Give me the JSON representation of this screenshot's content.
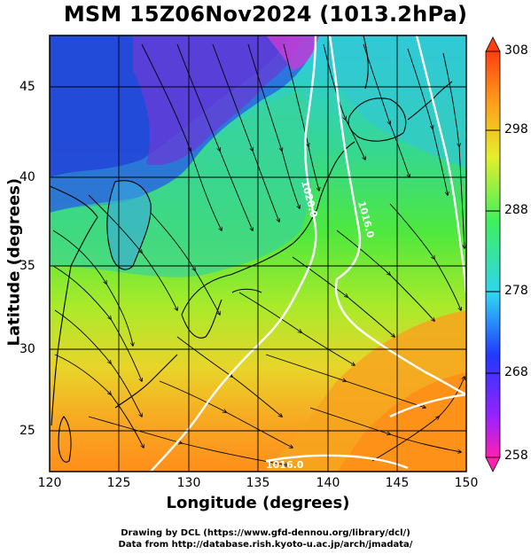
{
  "title": "MSM 15Z06Nov2024 (1013.2hPa)",
  "map": {
    "type": "temperature field with streamlines and pressure isobars",
    "region": "Japan and surrounding seas",
    "lon_range": [
      120,
      150
    ],
    "lat_range": [
      22.5,
      47.6
    ],
    "x_label": "Longitude (degrees)",
    "y_label": "Latitude  (degrees)",
    "x_ticks": [
      "120",
      "125",
      "130",
      "135",
      "140",
      "145",
      "150"
    ],
    "y_ticks": [
      "25",
      "30",
      "35",
      "40",
      "45"
    ],
    "grid": true,
    "isobars": [
      {
        "label": "1020.0",
        "color": "#ffffff"
      },
      {
        "label": "1016.0",
        "color": "#ffffff"
      },
      {
        "label": "1016.0",
        "color": "#ffffff"
      }
    ]
  },
  "colorbar": {
    "min": 258,
    "max": 308,
    "ticks": [
      "308",
      "298",
      "288",
      "278",
      "268",
      "258"
    ],
    "colors": [
      "#ff1fb0",
      "#9a22ff",
      "#2237ff",
      "#2fd4f4",
      "#3df05e",
      "#e4ef2b",
      "#ff9a1a",
      "#ff3e10"
    ]
  },
  "credits": [
    "Drawing by DCL (https://www.gfd-dennou.org/library/dcl/)",
    "Data from http://database.rish.kyoto-u.ac.jp/arch/jmadata/"
  ]
}
